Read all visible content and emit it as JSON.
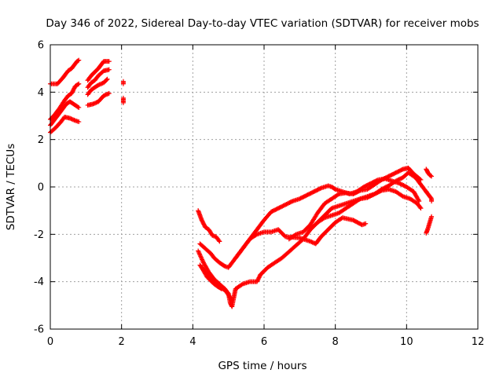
{
  "chart_data": {
    "type": "scatter",
    "title": "Day 346 of 2022, Sidereal Day-to-day VTEC variation (SDTVAR) for receiver mobs",
    "xlabel": "GPS time / hours",
    "ylabel": "SDTVAR / TECUs",
    "xlim": [
      0,
      12
    ],
    "ylim": [
      -6,
      6
    ],
    "xticks": [
      "0",
      "2",
      "4",
      "6",
      "8",
      "10",
      "12"
    ],
    "yticks": [
      "-6",
      "-4",
      "-2",
      "0",
      "2",
      "4",
      "6"
    ],
    "grid": true,
    "marker": "+",
    "color": "#ff0000",
    "tracks": [
      [
        [
          0.0,
          4.35
        ],
        [
          0.2,
          4.35
        ],
        [
          0.35,
          4.6
        ],
        [
          0.5,
          4.9
        ],
        [
          0.6,
          5.0
        ],
        [
          0.75,
          5.3
        ],
        [
          0.8,
          5.35
        ]
      ],
      [
        [
          0.0,
          2.85
        ],
        [
          0.1,
          3.0
        ],
        [
          0.25,
          3.3
        ],
        [
          0.4,
          3.65
        ],
        [
          0.5,
          3.85
        ],
        [
          0.6,
          3.95
        ],
        [
          0.7,
          4.25
        ],
        [
          0.8,
          4.35
        ]
      ],
      [
        [
          0.0,
          2.6
        ],
        [
          0.15,
          2.9
        ],
        [
          0.3,
          3.2
        ],
        [
          0.45,
          3.5
        ],
        [
          0.55,
          3.6
        ],
        [
          0.65,
          3.5
        ],
        [
          0.8,
          3.35
        ]
      ],
      [
        [
          0.0,
          2.3
        ],
        [
          0.15,
          2.5
        ],
        [
          0.3,
          2.75
        ],
        [
          0.4,
          2.95
        ],
        [
          0.55,
          2.9
        ],
        [
          0.7,
          2.8
        ],
        [
          0.8,
          2.75
        ]
      ],
      [
        [
          1.05,
          4.5
        ],
        [
          1.15,
          4.7
        ],
        [
          1.25,
          4.85
        ],
        [
          1.35,
          5.0
        ],
        [
          1.5,
          5.3
        ],
        [
          1.65,
          5.3
        ]
      ],
      [
        [
          1.05,
          4.2
        ],
        [
          1.15,
          4.4
        ],
        [
          1.25,
          4.5
        ],
        [
          1.35,
          4.7
        ],
        [
          1.5,
          4.9
        ],
        [
          1.65,
          4.95
        ]
      ],
      [
        [
          1.05,
          3.9
        ],
        [
          1.15,
          4.1
        ],
        [
          1.25,
          4.2
        ],
        [
          1.35,
          4.3
        ],
        [
          1.5,
          4.4
        ],
        [
          1.6,
          4.55
        ]
      ],
      [
        [
          1.05,
          3.45
        ],
        [
          1.2,
          3.5
        ],
        [
          1.35,
          3.6
        ],
        [
          1.5,
          3.85
        ],
        [
          1.65,
          3.95
        ]
      ],
      [
        [
          2.05,
          4.45
        ],
        [
          2.05,
          4.35
        ]
      ],
      [
        [
          2.05,
          3.75
        ],
        [
          2.05,
          3.55
        ]
      ],
      [
        [
          4.15,
          -1.0
        ],
        [
          4.25,
          -1.4
        ],
        [
          4.35,
          -1.7
        ],
        [
          4.45,
          -1.8
        ],
        [
          4.55,
          -2.05
        ],
        [
          4.65,
          -2.1
        ],
        [
          4.75,
          -2.3
        ]
      ],
      [
        [
          4.2,
          -2.4
        ],
        [
          4.35,
          -2.6
        ],
        [
          4.5,
          -2.8
        ],
        [
          4.6,
          -3.0
        ],
        [
          4.75,
          -3.2
        ],
        [
          4.9,
          -3.35
        ],
        [
          5.0,
          -3.4
        ],
        [
          5.2,
          -3.0
        ],
        [
          5.4,
          -2.6
        ],
        [
          5.6,
          -2.2
        ],
        [
          5.8,
          -2.0
        ],
        [
          6.0,
          -1.9
        ],
        [
          6.2,
          -1.9
        ],
        [
          6.4,
          -1.8
        ],
        [
          6.6,
          -2.1
        ],
        [
          7.0,
          -2.15
        ],
        [
          7.3,
          -2.3
        ],
        [
          7.45,
          -2.4
        ],
        [
          7.6,
          -2.1
        ],
        [
          7.8,
          -1.8
        ],
        [
          8.0,
          -1.5
        ],
        [
          8.2,
          -1.3
        ],
        [
          8.5,
          -1.4
        ],
        [
          8.75,
          -1.6
        ],
        [
          8.85,
          -1.55
        ]
      ],
      [
        [
          4.15,
          -2.7
        ],
        [
          4.3,
          -3.2
        ],
        [
          4.45,
          -3.6
        ],
        [
          4.6,
          -3.9
        ],
        [
          4.75,
          -4.1
        ],
        [
          4.9,
          -4.3
        ],
        [
          5.0,
          -4.5
        ],
        [
          5.05,
          -4.9
        ],
        [
          5.1,
          -5.05
        ],
        [
          5.2,
          -4.3
        ],
        [
          5.4,
          -4.1
        ],
        [
          5.6,
          -4.0
        ],
        [
          5.8,
          -4.0
        ],
        [
          5.9,
          -3.7
        ],
        [
          6.1,
          -3.4
        ],
        [
          6.3,
          -3.2
        ],
        [
          6.5,
          -3.0
        ],
        [
          6.8,
          -2.6
        ],
        [
          7.1,
          -2.2
        ],
        [
          7.3,
          -1.8
        ],
        [
          7.5,
          -1.5
        ],
        [
          7.7,
          -1.3
        ],
        [
          7.9,
          -1.2
        ],
        [
          8.1,
          -1.1
        ],
        [
          8.3,
          -0.9
        ],
        [
          8.5,
          -0.7
        ],
        [
          8.7,
          -0.5
        ],
        [
          8.9,
          -0.4
        ],
        [
          9.1,
          -0.3
        ],
        [
          9.3,
          -0.1
        ],
        [
          9.5,
          0.05
        ],
        [
          9.7,
          0.25
        ],
        [
          9.9,
          0.4
        ],
        [
          10.05,
          0.6
        ],
        [
          10.25,
          0.4
        ],
        [
          10.45,
          0.0
        ],
        [
          10.55,
          -0.2
        ]
      ],
      [
        [
          4.2,
          -3.3
        ],
        [
          4.4,
          -3.7
        ],
        [
          4.55,
          -4.0
        ],
        [
          4.7,
          -4.2
        ],
        [
          4.9,
          -4.35
        ],
        [
          5.0,
          -4.55
        ],
        [
          5.1,
          -4.8
        ]
      ],
      [
        [
          4.25,
          -3.4
        ],
        [
          4.4,
          -3.8
        ],
        [
          4.6,
          -4.1
        ],
        [
          4.8,
          -4.3
        ]
      ],
      [
        [
          5.2,
          -3.0
        ],
        [
          5.4,
          -2.6
        ],
        [
          5.6,
          -2.2
        ],
        [
          5.8,
          -1.8
        ],
        [
          6.0,
          -1.4
        ],
        [
          6.2,
          -1.05
        ],
        [
          6.4,
          -0.9
        ],
        [
          6.6,
          -0.75
        ],
        [
          6.8,
          -0.6
        ],
        [
          7.0,
          -0.5
        ],
        [
          7.2,
          -0.35
        ],
        [
          7.4,
          -0.2
        ],
        [
          7.6,
          -0.05
        ],
        [
          7.8,
          0.05
        ],
        [
          7.9,
          0.0
        ],
        [
          8.0,
          -0.1
        ],
        [
          8.2,
          -0.2
        ],
        [
          8.4,
          -0.3
        ],
        [
          8.6,
          -0.2
        ],
        [
          8.8,
          0.0
        ],
        [
          9.0,
          0.15
        ],
        [
          9.2,
          0.3
        ],
        [
          9.4,
          0.35
        ],
        [
          9.6,
          0.25
        ],
        [
          9.8,
          0.15
        ],
        [
          10.0,
          0.0
        ],
        [
          10.2,
          -0.2
        ],
        [
          10.35,
          -0.6
        ]
      ],
      [
        [
          6.7,
          -2.2
        ],
        [
          6.9,
          -2.0
        ],
        [
          7.1,
          -1.9
        ],
        [
          7.3,
          -1.6
        ],
        [
          7.5,
          -1.1
        ],
        [
          7.7,
          -0.7
        ],
        [
          7.9,
          -0.5
        ],
        [
          8.1,
          -0.3
        ],
        [
          8.3,
          -0.25
        ],
        [
          8.5,
          -0.3
        ],
        [
          8.7,
          -0.15
        ],
        [
          8.9,
          -0.1
        ],
        [
          9.1,
          0.1
        ],
        [
          9.3,
          0.3
        ],
        [
          9.5,
          0.45
        ],
        [
          9.7,
          0.6
        ],
        [
          9.9,
          0.75
        ],
        [
          10.05,
          0.8
        ],
        [
          10.2,
          0.55
        ],
        [
          10.4,
          0.3
        ]
      ],
      [
        [
          7.5,
          -1.5
        ],
        [
          7.7,
          -1.2
        ],
        [
          7.9,
          -0.9
        ],
        [
          8.1,
          -0.8
        ],
        [
          8.3,
          -0.7
        ],
        [
          8.5,
          -0.6
        ],
        [
          8.7,
          -0.5
        ],
        [
          8.9,
          -0.45
        ],
        [
          9.1,
          -0.3
        ],
        [
          9.3,
          -0.15
        ],
        [
          9.5,
          -0.1
        ],
        [
          9.7,
          -0.2
        ],
        [
          9.9,
          -0.4
        ],
        [
          10.1,
          -0.5
        ],
        [
          10.3,
          -0.7
        ],
        [
          10.4,
          -0.9
        ]
      ],
      [
        [
          10.55,
          0.75
        ],
        [
          10.6,
          0.6
        ],
        [
          10.65,
          0.5
        ],
        [
          10.7,
          0.45
        ]
      ],
      [
        [
          10.55,
          -0.2
        ],
        [
          10.6,
          -0.3
        ],
        [
          10.65,
          -0.4
        ],
        [
          10.7,
          -0.5
        ],
        [
          10.7,
          -0.6
        ]
      ],
      [
        [
          10.55,
          -1.95
        ],
        [
          10.6,
          -1.75
        ],
        [
          10.65,
          -1.5
        ],
        [
          10.7,
          -1.25
        ]
      ]
    ]
  }
}
